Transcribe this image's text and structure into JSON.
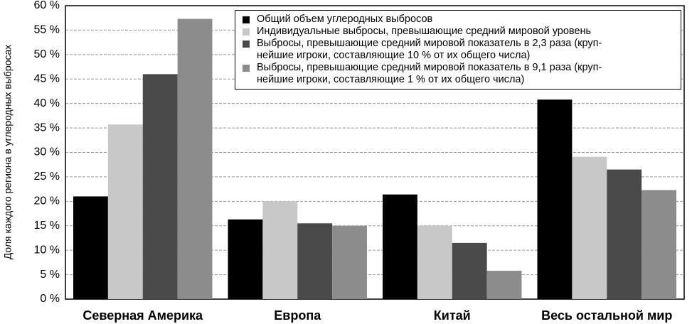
{
  "chart_data": {
    "type": "bar",
    "y_label": "Доля каждого региона в углеродных выбросах",
    "categories": [
      "Северная Америка",
      "Европа",
      "Китай",
      "Весь остальной мир"
    ],
    "series": [
      {
        "name": "Общий объем углеродных выбросов",
        "color": "#000000",
        "values": [
          21,
          16.3,
          21.4,
          40.8
        ]
      },
      {
        "name": "Индивидуальные выбросы, превышающие средний мировой уровень",
        "color": "#c8c8c8",
        "values": [
          35.7,
          20,
          15,
          29.1
        ]
      },
      {
        "name": "Выбросы, превышающие средний мировой показатель в 2,3 раза (круп-\nнейшие игроки, составляющие 10 % от их общего числа)",
        "color": "#4a4a4a",
        "values": [
          46,
          15.5,
          11.5,
          26.5
        ]
      },
      {
        "name": "Выбросы, превышающие средний мировой показатель в 9,1 раза (круп-\nнейшие игроки, составляющие 1 % от их общего числа)",
        "color": "#8c8c8c",
        "values": [
          57.3,
          15,
          5.8,
          22.3
        ]
      }
    ],
    "ylim": [
      0,
      60
    ],
    "yticks": [
      {
        "value": 0,
        "label": "0 %"
      },
      {
        "value": 5,
        "label": "5 %"
      },
      {
        "value": 10,
        "label": "10 %"
      },
      {
        "value": 15,
        "label": "15 %"
      },
      {
        "value": 20,
        "label": "20 %"
      },
      {
        "value": 25,
        "label": "25 %"
      },
      {
        "value": 30,
        "label": "30 %"
      },
      {
        "value": 35,
        "label": "35 %"
      },
      {
        "value": 40,
        "label": "40 %"
      },
      {
        "value": 45,
        "label": "45 %"
      },
      {
        "value": 50,
        "label": "50 %"
      },
      {
        "value": 55,
        "label": "55 %"
      },
      {
        "value": 60,
        "label": "60 %"
      }
    ],
    "grid": true
  }
}
